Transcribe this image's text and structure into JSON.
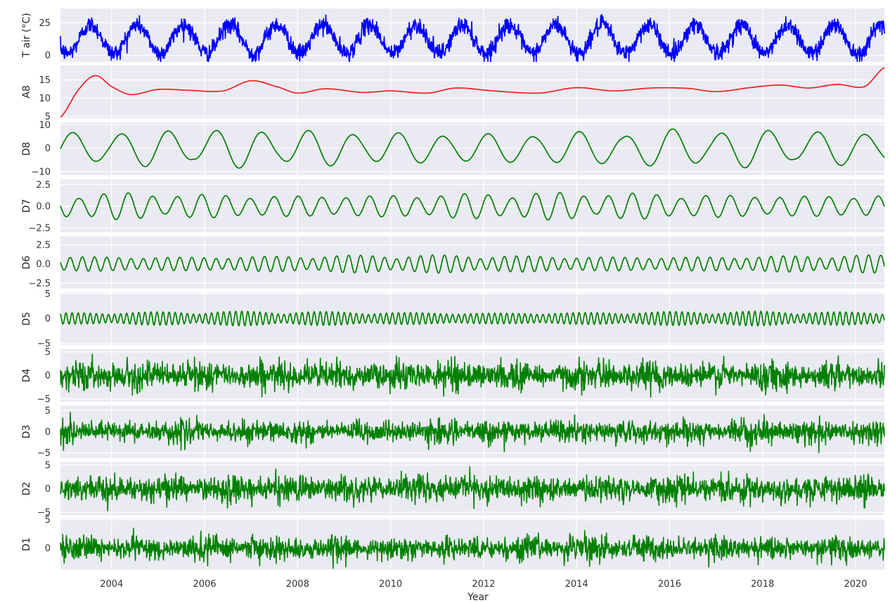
{
  "figure": {
    "xlabel": "Year",
    "x_ticks": [
      "2004",
      "2006",
      "2008",
      "2010",
      "2012",
      "2014",
      "2016",
      "2018",
      "2020"
    ],
    "x_range": [
      2002.9,
      2020.62
    ],
    "background": "#eaeaf2",
    "grid": true
  },
  "chart_data": [
    {
      "type": "line",
      "ylabel": "T air (°C)",
      "color": "#0000ff",
      "ylim": [
        -5,
        36
      ],
      "yticks": [
        "0",
        "25"
      ],
      "ytick_values": [
        0,
        25
      ],
      "description_values": {
        "kind": "seasonal",
        "mean": 12.5,
        "amplitude": 11,
        "noise": 3.2,
        "start": 2002.9,
        "end": 2020.62
      }
    },
    {
      "type": "line",
      "ylabel": "A8",
      "color": "#ee2222",
      "ylim": [
        4.5,
        19
      ],
      "yticks": [
        "5",
        "10",
        "15"
      ],
      "ytick_values": [
        5,
        10,
        15
      ],
      "x": [
        2002.9,
        2003.3,
        2003.65,
        2004.0,
        2004.4,
        2005.0,
        2005.6,
        2006.4,
        2007.0,
        2007.6,
        2008.0,
        2008.6,
        2009.4,
        2010.0,
        2010.8,
        2011.4,
        2012.2,
        2013.2,
        2014.0,
        2014.8,
        2015.6,
        2016.4,
        2017.0,
        2017.8,
        2018.4,
        2019.0,
        2019.6,
        2020.2,
        2020.62
      ],
      "y": [
        4.8,
        12.5,
        16.2,
        13.2,
        11.0,
        12.4,
        12.2,
        12.0,
        14.8,
        13.0,
        11.4,
        12.6,
        11.6,
        12.0,
        11.4,
        12.8,
        12.0,
        11.4,
        12.9,
        12.0,
        12.8,
        12.7,
        11.8,
        13.0,
        13.6,
        12.8,
        13.8,
        13.2,
        18.4
      ]
    },
    {
      "type": "line",
      "ylabel": "D8",
      "color": "#008000",
      "ylim": [
        -11.5,
        11
      ],
      "yticks": [
        "−10",
        "0",
        "10"
      ],
      "ytick_values": [
        -10,
        0,
        10
      ],
      "description_values": {
        "kind": "oscillation",
        "period_years": 1.0,
        "amplitude": 8.5,
        "phase_start": 2002.9,
        "start": 2002.9,
        "end": 2020.62
      }
    },
    {
      "type": "line",
      "ylabel": "D7",
      "color": "#008000",
      "ylim": [
        -3.0,
        3.1
      ],
      "yticks": [
        "−2.5",
        "0.0",
        "2.5"
      ],
      "ytick_values": [
        -2.5,
        0,
        2.5
      ],
      "description_values": {
        "kind": "oscillation",
        "period_years": 0.52,
        "amplitude": 1.6,
        "start": 2002.9,
        "end": 2020.62
      }
    },
    {
      "type": "line",
      "ylabel": "D6",
      "color": "#008000",
      "ylim": [
        -3.2,
        3.6
      ],
      "yticks": [
        "−2.5",
        "0.0",
        "2.5"
      ],
      "ytick_values": [
        -2.5,
        0,
        2.5
      ],
      "description_values": {
        "kind": "oscillation",
        "period_years": 0.26,
        "amplitude": 1.2,
        "start": 2002.9,
        "end": 2020.62
      }
    },
    {
      "type": "line",
      "ylabel": "D5",
      "color": "#008000",
      "ylim": [
        -5.3,
        5.2
      ],
      "yticks": [
        "−5",
        "0",
        "5"
      ],
      "ytick_values": [
        -5,
        0,
        5
      ],
      "description_values": {
        "kind": "oscillation",
        "period_years": 0.13,
        "amplitude": 1.5,
        "start": 2002.9,
        "end": 2020.62
      }
    },
    {
      "type": "line",
      "ylabel": "D4",
      "color": "#008000",
      "ylim": [
        -5.6,
        5.6
      ],
      "yticks": [
        "−5",
        "0",
        "5"
      ],
      "ytick_values": [
        -5,
        0,
        5
      ],
      "description_values": {
        "kind": "noise",
        "amplitude": 1.6,
        "start": 2002.9,
        "end": 2020.62
      }
    },
    {
      "type": "line",
      "ylabel": "D3",
      "color": "#008000",
      "ylim": [
        -6.2,
        6.2
      ],
      "yticks": [
        "−5",
        "0",
        "5"
      ],
      "ytick_values": [
        -5,
        0,
        5
      ],
      "description_values": {
        "kind": "noise",
        "amplitude": 1.4,
        "start": 2002.9,
        "end": 2020.62
      }
    },
    {
      "type": "line",
      "ylabel": "D2",
      "color": "#008000",
      "ylim": [
        -5.6,
        5.6
      ],
      "yticks": [
        "−5",
        "0",
        "5"
      ],
      "ytick_values": [
        -5,
        0,
        5
      ],
      "description_values": {
        "kind": "noise",
        "amplitude": 1.5,
        "start": 2002.9,
        "end": 2020.62
      }
    },
    {
      "type": "line",
      "ylabel": "D1",
      "color": "#008000",
      "ylim": [
        -3.8,
        5.2
      ],
      "yticks": [
        "0",
        "5"
      ],
      "ytick_values": [
        0,
        5
      ],
      "description_values": {
        "kind": "noise",
        "amplitude": 1.1,
        "start": 2002.9,
        "end": 2020.62
      }
    }
  ]
}
